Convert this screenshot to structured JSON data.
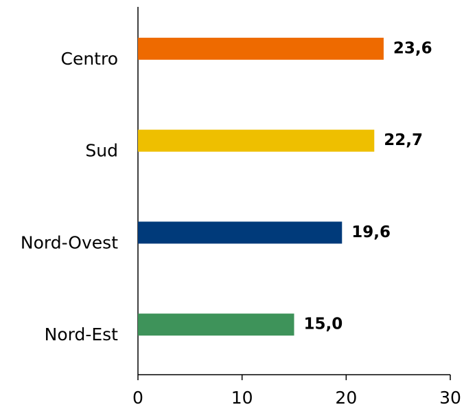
{
  "chart_data": {
    "type": "bar",
    "orientation": "horizontal",
    "categories": [
      "Centro",
      "Sud",
      "Nord-Ovest",
      "Nord-Est"
    ],
    "values": [
      23.6,
      22.7,
      19.6,
      15.0
    ],
    "value_labels": [
      "23,6",
      "22,7",
      "19,6",
      "15,0"
    ],
    "colors": [
      "#ee6a00",
      "#eebf00",
      "#003a7a",
      "#3e935a"
    ],
    "label_colors": [
      "#ee6a00",
      "#bf9300",
      "#003a7a",
      "#3e935a"
    ],
    "xlim": [
      0,
      30
    ],
    "xticks": [
      0,
      10,
      20,
      30
    ],
    "grid": false
  }
}
